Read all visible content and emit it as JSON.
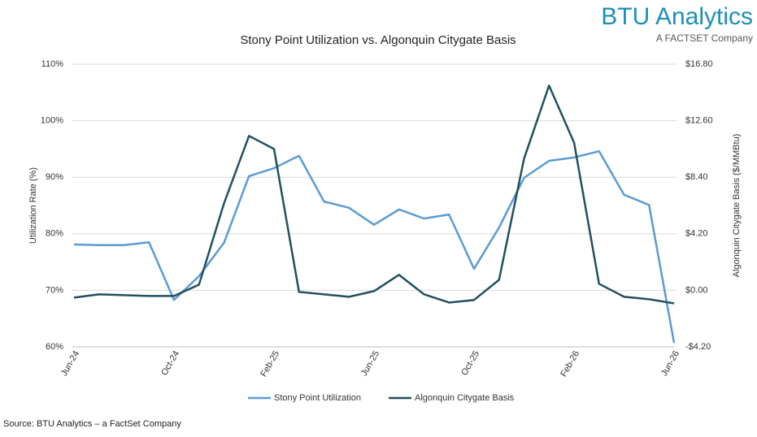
{
  "chart_data": {
    "type": "line",
    "title": "Stony Point Utilization vs. Algonquin Citygate Basis",
    "logo": "BTU Analytics",
    "logo_subtitle": "A FACTSET Company",
    "source": "Source: BTU Analytics – a FactSet Company",
    "y_label": "Utilization Rate (%)",
    "y2_label": "Algonquin Citygate Basis ($/MMBtu)",
    "categories": [
      "Jun-24",
      null,
      null,
      null,
      "Oct-24",
      null,
      null,
      null,
      "Feb-25",
      null,
      null,
      null,
      "Jun-25",
      null,
      null,
      null,
      "Oct-25",
      null,
      null,
      null,
      "Feb-26",
      null,
      null,
      null,
      "Jun-26"
    ],
    "ylim": [
      60,
      110
    ],
    "yticks": [
      {
        "value": 60,
        "label": "60%"
      },
      {
        "value": 70,
        "label": "70%"
      },
      {
        "value": 80,
        "label": "80%"
      },
      {
        "value": 90,
        "label": "90%"
      },
      {
        "value": 100,
        "label": "100%"
      },
      {
        "value": 110,
        "label": "110%"
      }
    ],
    "y2lim": [
      -4.2,
      16.8
    ],
    "y2ticks": [
      {
        "value": -4.2,
        "label": "-$4.20"
      },
      {
        "value": 0,
        "label": "$0.00"
      },
      {
        "value": 4.2,
        "label": "$4.20"
      },
      {
        "value": 8.4,
        "label": "$8.40"
      },
      {
        "value": 12.6,
        "label": "$12.60"
      },
      {
        "value": 16.8,
        "label": "$16.80"
      }
    ],
    "legend": "bottom",
    "series": [
      {
        "name": "Stony Point Utilization",
        "color": "#5b9bd5",
        "values": [
          78.1,
          78.0,
          78.0,
          78.5,
          68.3,
          72.5,
          78.4,
          90.2,
          91.6,
          93.8,
          85.7,
          84.6,
          81.6,
          84.3,
          82.7,
          83.4,
          73.8,
          81.1,
          89.9,
          92.9,
          93.5,
          94.6,
          86.9,
          85.1,
          60.7
        ]
      },
      {
        "name": "Algonquin Citygate Basis",
        "color": "#22505f",
        "axis": "y2",
        "values": [
          -0.54,
          -0.3,
          -0.36,
          -0.42,
          -0.42,
          0.42,
          6.46,
          11.47,
          10.5,
          -0.12,
          -0.3,
          -0.48,
          -0.06,
          1.15,
          -0.3,
          -0.91,
          -0.72,
          0.78,
          9.78,
          15.21,
          10.98,
          0.48,
          -0.48,
          -0.66,
          -0.97
        ]
      }
    ]
  }
}
